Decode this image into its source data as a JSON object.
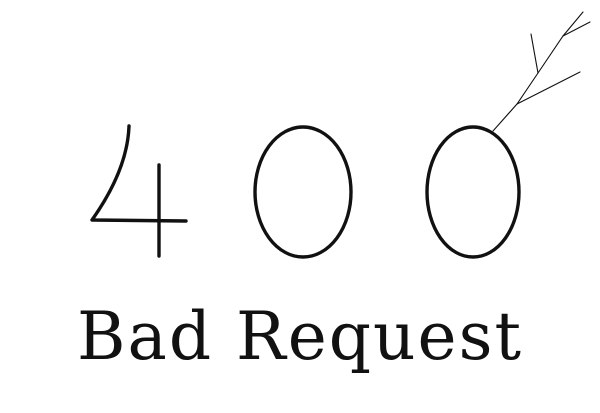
{
  "error": {
    "code": "400",
    "digits": [
      "4",
      "0",
      "0"
    ],
    "message": "Bad Request"
  },
  "colors": {
    "background": "#ffffff",
    "ink": "#111111"
  },
  "decor": {
    "twig_icon": "branch-icon"
  }
}
